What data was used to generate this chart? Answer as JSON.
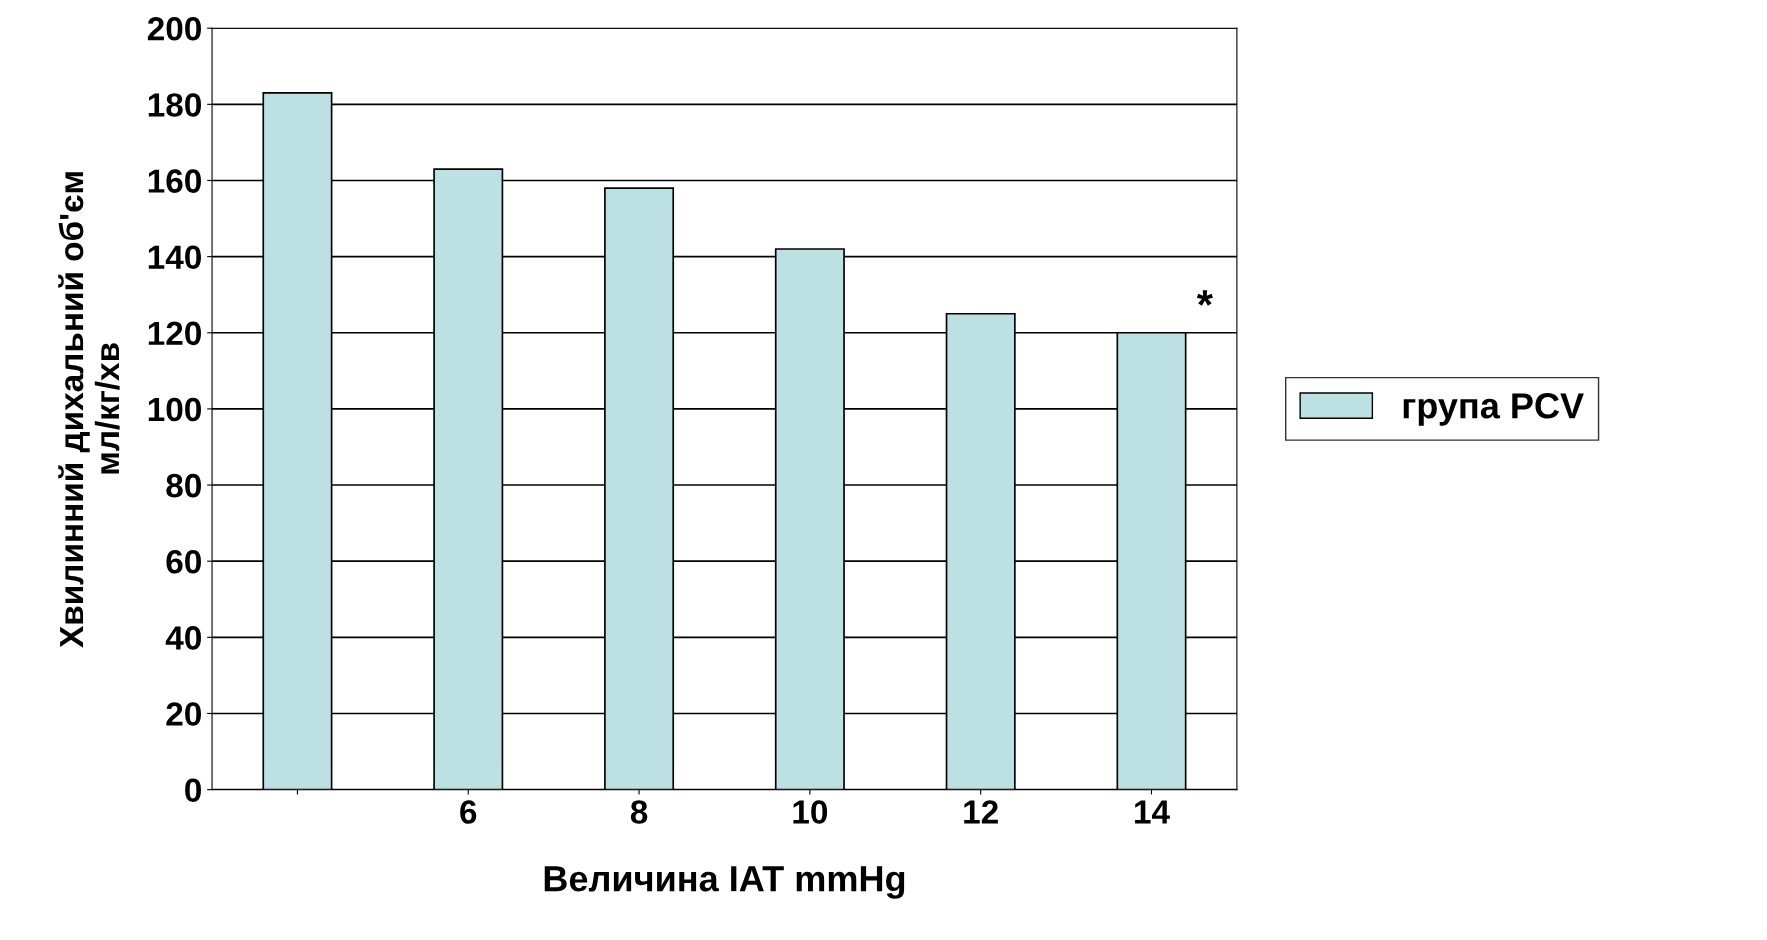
{
  "chart_data": {
    "type": "bar",
    "xlabel": "Величина IAT mmHg",
    "ylabel": "Хвилинний дихальний об'єм\nмл/кг/хв",
    "categories": [
      null,
      "6",
      "8",
      "10",
      "12",
      "14"
    ],
    "series": [
      {
        "name": "група PCV",
        "color": "#bde0e3",
        "values": [
          183,
          163,
          158,
          142,
          125,
          120
        ]
      }
    ],
    "ylim": [
      0,
      200
    ],
    "yticks": [
      0,
      20,
      40,
      60,
      80,
      100,
      120,
      140,
      160,
      180,
      200
    ],
    "grid": "y",
    "legend": "right",
    "annotations": [
      {
        "text": "*",
        "x": "14",
        "y": 120
      }
    ]
  }
}
